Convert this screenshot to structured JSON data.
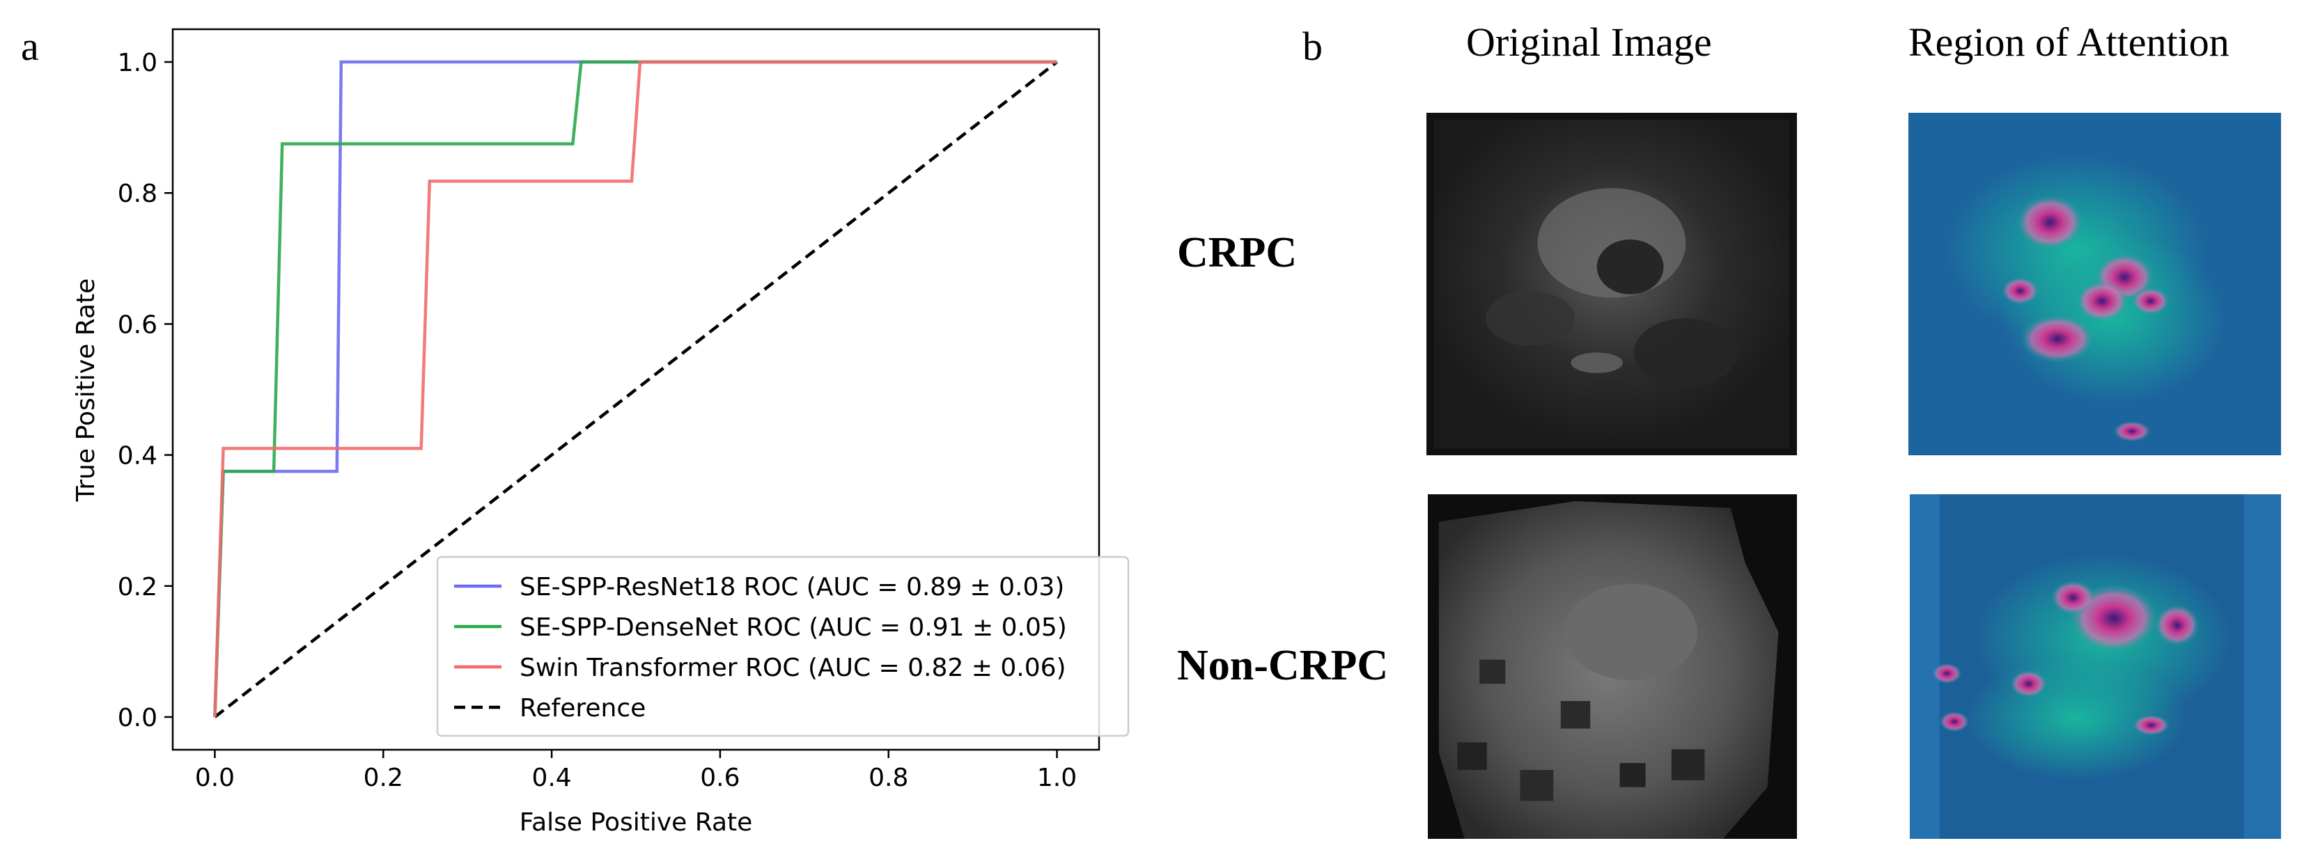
{
  "panel_a": {
    "letter": "a",
    "chart_data": {
      "type": "line",
      "xlabel": "False Positive Rate",
      "ylabel": "True Positive Rate",
      "xlim": [
        -0.05,
        1.05
      ],
      "ylim": [
        -0.05,
        1.05
      ],
      "xticks": [
        0.0,
        0.2,
        0.4,
        0.6,
        0.8,
        1.0
      ],
      "yticks": [
        0.0,
        0.2,
        0.4,
        0.6,
        0.8,
        1.0
      ],
      "grid": false,
      "legend_position": "lower-right",
      "series": [
        {
          "name": "SE-SPP-ResNet18 ROC (AUC = 0.89 ± 0.03)",
          "color": "#6b6bf2",
          "x": [
            0.0,
            0.01,
            0.145,
            0.15,
            0.43,
            1.0
          ],
          "y": [
            0.0,
            0.375,
            0.375,
            1.0,
            1.0,
            1.0
          ]
        },
        {
          "name": "SE-SPP-DenseNet ROC (AUC = 0.91 ± 0.05)",
          "color": "#2aa84a",
          "x": [
            0.0,
            0.01,
            0.07,
            0.08,
            0.425,
            0.435,
            1.0
          ],
          "y": [
            0.0,
            0.375,
            0.375,
            0.875,
            0.875,
            1.0,
            1.0
          ]
        },
        {
          "name": "Swin Transformer ROC (AUC = 0.82 ± 0.06)",
          "color": "#f26b6b",
          "x": [
            0.0,
            0.01,
            0.245,
            0.255,
            0.495,
            0.505,
            1.0
          ],
          "y": [
            0.0,
            0.41,
            0.41,
            0.818,
            0.818,
            1.0,
            1.0
          ]
        },
        {
          "name": "Reference",
          "color": "#000000",
          "dashed": true,
          "x": [
            0.0,
            1.0
          ],
          "y": [
            0.0,
            1.0
          ]
        }
      ]
    }
  },
  "panel_b": {
    "letter": "b",
    "col_headers": [
      "Original Image",
      "Region of Attention"
    ],
    "row_labels": [
      "CRPC",
      "Non-CRPC"
    ]
  }
}
